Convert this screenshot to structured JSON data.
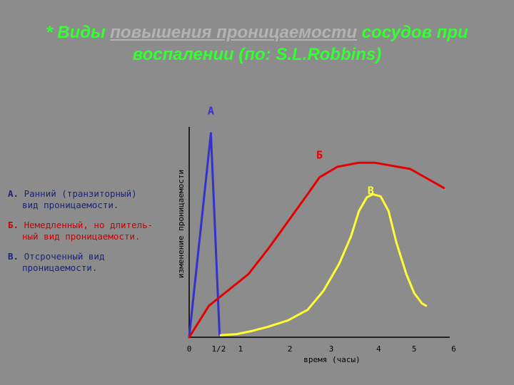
{
  "title": {
    "prefix": "* Виды ",
    "underlined": "повышения проницаемости",
    "after": " сосудов при",
    "line2": "воспалении (по: S.L.Robbins)"
  },
  "legend": [
    {
      "key": "А.",
      "line1": " Ранний (транзиторный)",
      "line2": "вид проницаемости.",
      "color": "#1a237e"
    },
    {
      "key": "Б.",
      "line1": " Немедленный, но длитель-",
      "line2": "ный вид проницаемости.",
      "color": "#cc0000"
    },
    {
      "key": "В.",
      "line1": " Отсроченный вид",
      "line2": "проницаемости.",
      "color": "#1a237e"
    }
  ],
  "colors": {
    "background": "#8c8c8c",
    "title": "#33ff33",
    "axis": "#000000",
    "series_a": "#3333cc",
    "series_b": "#e60000",
    "series_c": "#ffff33"
  },
  "chart_data": {
    "type": "line",
    "xlabel": "время (часы)",
    "ylabel": "изменение проницаемости",
    "xlim": [
      0,
      6.6
    ],
    "ylim": [
      0,
      100
    ],
    "xticks": [
      {
        "value": 0,
        "label": "0"
      },
      {
        "value": 0.75,
        "label": "1/2"
      },
      {
        "value": 1.3,
        "label": "1"
      },
      {
        "value": 2.55,
        "label": "2"
      },
      {
        "value": 3.6,
        "label": "3"
      },
      {
        "value": 4.8,
        "label": "4"
      },
      {
        "value": 5.7,
        "label": "5"
      },
      {
        "value": 6.7,
        "label": "6"
      }
    ],
    "grid": false,
    "series": [
      {
        "name": "А",
        "color": "#3333cc",
        "label_at": [
          0.55,
          106
        ],
        "points": [
          [
            0,
            0
          ],
          [
            0.55,
            97
          ],
          [
            0.77,
            1
          ]
        ]
      },
      {
        "name": "Б",
        "color": "#e60000",
        "label_at": [
          3.3,
          85
        ],
        "points": [
          [
            0,
            0
          ],
          [
            0.5,
            15
          ],
          [
            1.5,
            30
          ],
          [
            2.0,
            42
          ],
          [
            2.5,
            55
          ],
          [
            3.0,
            68
          ],
          [
            3.3,
            76
          ],
          [
            3.75,
            81
          ],
          [
            4.3,
            83
          ],
          [
            4.7,
            83
          ],
          [
            5.0,
            82
          ],
          [
            5.6,
            80
          ],
          [
            6.45,
            71
          ]
        ]
      },
      {
        "name": "В",
        "color": "#ffff33",
        "label_at": [
          4.6,
          68
        ],
        "points": [
          [
            0.8,
            1
          ],
          [
            1.2,
            1.5
          ],
          [
            1.6,
            3
          ],
          [
            2.0,
            5
          ],
          [
            2.5,
            8
          ],
          [
            3.0,
            13
          ],
          [
            3.4,
            22
          ],
          [
            3.8,
            35
          ],
          [
            4.1,
            48
          ],
          [
            4.3,
            60
          ],
          [
            4.5,
            66.5
          ],
          [
            4.65,
            68
          ],
          [
            4.85,
            67
          ],
          [
            5.05,
            60
          ],
          [
            5.25,
            45
          ],
          [
            5.5,
            30
          ],
          [
            5.7,
            21
          ],
          [
            5.9,
            16
          ],
          [
            6.0,
            15
          ]
        ]
      }
    ]
  }
}
